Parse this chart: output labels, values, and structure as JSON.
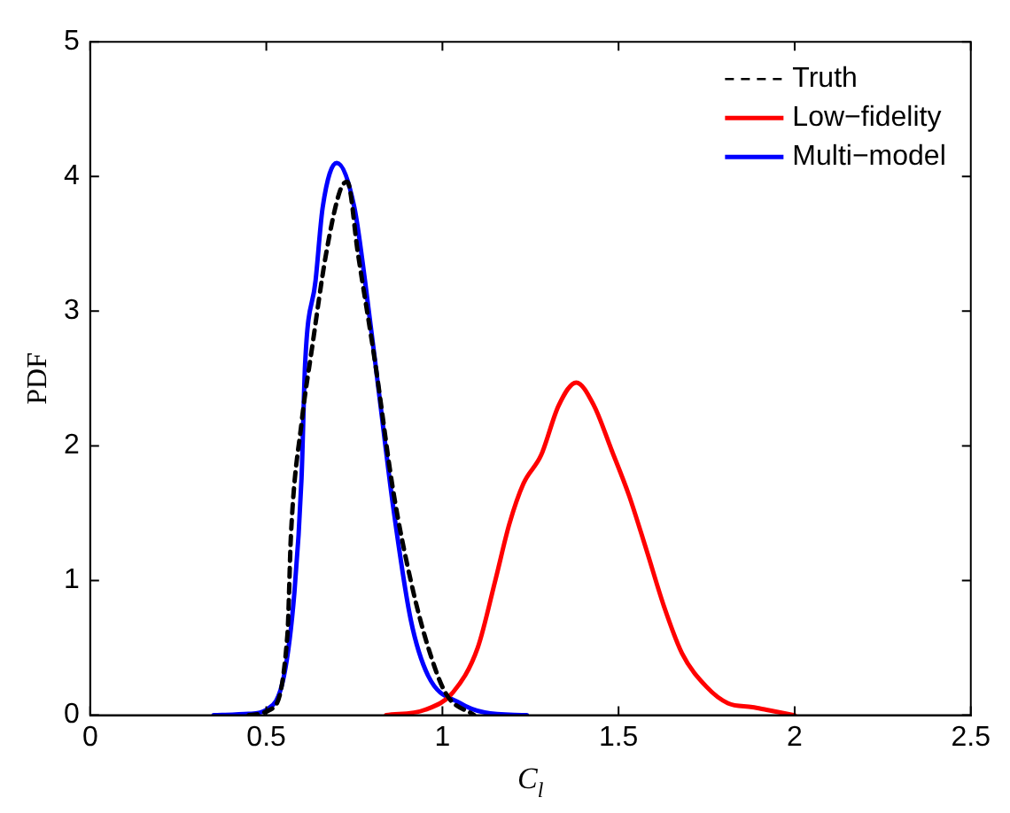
{
  "chart_data": {
    "type": "line",
    "xlabel": "C$_{l}$",
    "ylabel": "PDF",
    "xlim": [
      0,
      2.5
    ],
    "xticks": [
      0,
      0.5,
      1,
      1.5,
      2,
      2.5
    ],
    "ylim": [
      0,
      5
    ],
    "yticks": [
      0,
      1,
      2,
      3,
      4,
      5
    ],
    "grid": false,
    "legend": "top right",
    "marker": "none",
    "series": [
      {
        "name": "Truth",
        "color": "#000000",
        "line_style": "dashed",
        "x": [
          0.45,
          0.51,
          0.56,
          0.57,
          0.6,
          0.63,
          0.67,
          0.71,
          0.73,
          0.76,
          0.81,
          0.86,
          0.91,
          0.96,
          1.01,
          1.09
        ],
        "values": [
          0,
          0.04,
          0.6,
          1.34,
          2.17,
          2.73,
          3.43,
          3.9,
          3.96,
          3.43,
          2.6,
          1.67,
          1.0,
          0.5,
          0.16,
          0
        ]
      },
      {
        "name": "Low−fidelity",
        "color": "#ff0000",
        "line_style": "solid",
        "x": [
          0.84,
          0.95,
          1.03,
          1.1,
          1.15,
          1.19,
          1.23,
          1.28,
          1.33,
          1.38,
          1.43,
          1.48,
          1.53,
          1.58,
          1.63,
          1.68,
          1.75,
          1.81,
          1.88,
          1.92,
          2.0
        ],
        "values": [
          0,
          0.04,
          0.17,
          0.5,
          1.0,
          1.42,
          1.72,
          1.93,
          2.3,
          2.47,
          2.3,
          1.97,
          1.63,
          1.22,
          0.8,
          0.46,
          0.21,
          0.09,
          0.06,
          0.04,
          0
        ]
      },
      {
        "name": "Multi−model",
        "color": "#0000ff",
        "line_style": "solid",
        "x": [
          0.35,
          0.45,
          0.5,
          0.55,
          0.58,
          0.6,
          0.61,
          0.64,
          0.66,
          0.7,
          0.75,
          0.78,
          0.82,
          0.86,
          0.91,
          0.96,
          1.05,
          1.12,
          1.24
        ],
        "values": [
          0,
          0.01,
          0.04,
          0.29,
          0.92,
          1.76,
          2.6,
          3.23,
          3.77,
          4.1,
          3.77,
          3.23,
          2.39,
          1.55,
          0.71,
          0.29,
          0.09,
          0.02,
          0
        ]
      }
    ]
  }
}
